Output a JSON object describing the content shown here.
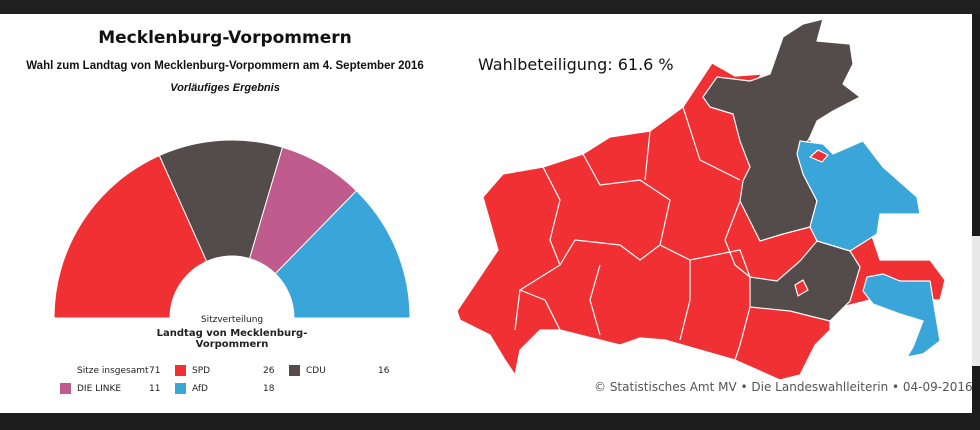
{
  "header": {
    "title": "Mecklenburg-Vorpommern",
    "subtitle": "Wahl zum Landtag von Mecklenburg-Vorpommern am 4. September 2016",
    "status": "Vorläufiges Ergebnis"
  },
  "seat_chart": {
    "label": "Sitzverteilung",
    "sublabel": "Landtag von Mecklenburg-Vorpommern",
    "total_label": "Sitze insgesamt",
    "total": "71",
    "parties": [
      {
        "name": "SPD",
        "seats": 26,
        "seats_text": "26",
        "color": "#f03033"
      },
      {
        "name": "CDU",
        "seats": 16,
        "seats_text": "16",
        "color": "#544b4b"
      },
      {
        "name": "DIE LINKE",
        "seats": 11,
        "seats_text": "11",
        "color": "#bf5b8d"
      },
      {
        "name": "AfD",
        "seats": 18,
        "seats_text": "18",
        "color": "#39a5d9"
      }
    ]
  },
  "map": {
    "turnout": "Wahlbeteiligung: 61.6 %",
    "credit": "© Statistisches Amt MV • Die Landeswahlleiterin • 04-09-2016"
  }
}
